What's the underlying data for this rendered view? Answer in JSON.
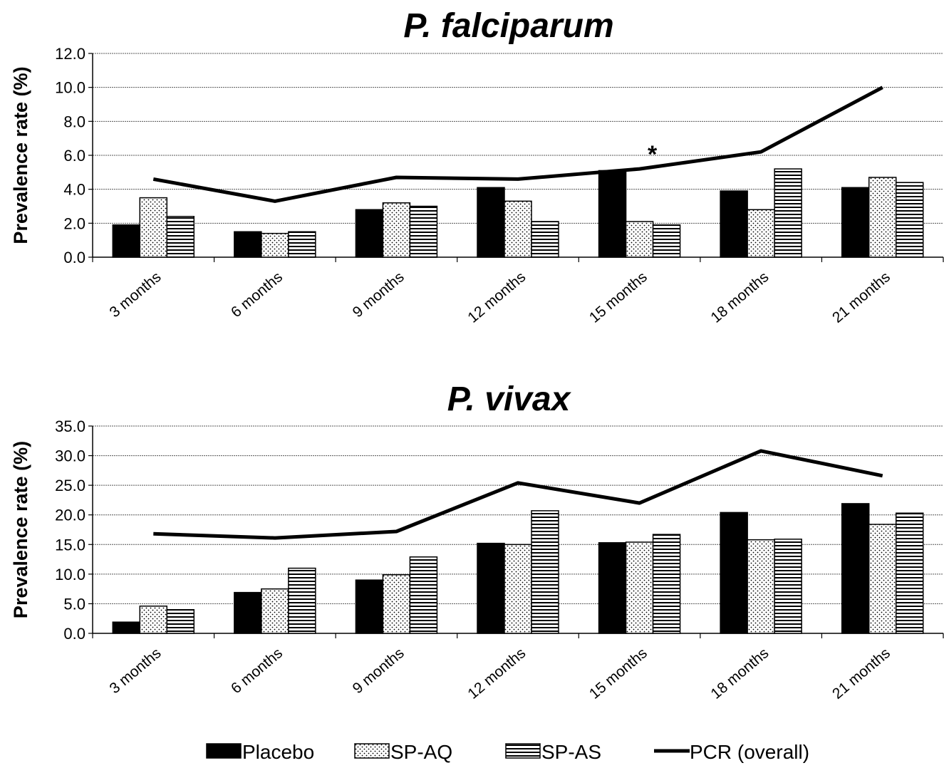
{
  "chart_data": [
    {
      "type": "bar",
      "title": "P. falciparum",
      "xlabel": "",
      "ylabel": "Prevalence rate (%)",
      "ylim": [
        0,
        12
      ],
      "yticks": [
        "0.0",
        "2.0",
        "4.0",
        "6.0",
        "8.0",
        "10.0",
        "12.0"
      ],
      "grid": true,
      "categories": [
        "3 months",
        "6 months",
        "9 months",
        "12 months",
        "15 months",
        "18 months",
        "21 months"
      ],
      "series": [
        {
          "name": "Placebo",
          "type": "bar",
          "pattern": "solid",
          "values": [
            1.9,
            1.5,
            2.8,
            4.1,
            5.1,
            3.9,
            4.1
          ]
        },
        {
          "name": "SP-AQ",
          "type": "bar",
          "pattern": "dots",
          "values": [
            3.5,
            1.4,
            3.2,
            3.3,
            2.1,
            2.8,
            4.7
          ]
        },
        {
          "name": "SP-AS",
          "type": "bar",
          "pattern": "hlines",
          "values": [
            2.4,
            1.5,
            3.0,
            2.1,
            1.9,
            5.2,
            4.4
          ]
        },
        {
          "name": "PCR (overall)",
          "type": "line",
          "values": [
            4.6,
            3.3,
            4.7,
            4.6,
            5.2,
            6.2,
            10.0
          ]
        }
      ],
      "annotations": [
        {
          "text": "*",
          "category": "15 months",
          "y": 6.0
        }
      ]
    },
    {
      "type": "bar",
      "title": "P. vivax",
      "xlabel": "",
      "ylabel": "Prevalence rate (%)",
      "ylim": [
        0,
        35
      ],
      "yticks": [
        "0.0",
        "5.0",
        "10.0",
        "15.0",
        "20.0",
        "25.0",
        "30.0",
        "35.0"
      ],
      "grid": true,
      "categories": [
        "3 months",
        "6 months",
        "9 months",
        "12 months",
        "15 months",
        "18 months",
        "21 months"
      ],
      "series": [
        {
          "name": "Placebo",
          "type": "bar",
          "pattern": "solid",
          "values": [
            1.9,
            6.9,
            9.0,
            15.2,
            15.3,
            20.4,
            21.9
          ]
        },
        {
          "name": "SP-AQ",
          "type": "bar",
          "pattern": "dots",
          "values": [
            4.6,
            7.5,
            9.9,
            15.0,
            15.4,
            15.8,
            18.4
          ]
        },
        {
          "name": "SP-AS",
          "type": "bar",
          "pattern": "hlines",
          "values": [
            4.0,
            11.0,
            12.9,
            20.7,
            16.7,
            15.9,
            20.3
          ]
        },
        {
          "name": "PCR (overall)",
          "type": "line",
          "values": [
            16.8,
            16.1,
            17.2,
            25.4,
            22.0,
            30.8,
            26.6
          ]
        }
      ]
    }
  ],
  "legend": {
    "position": "bottom",
    "items": [
      {
        "label": "Placebo",
        "pattern": "solid"
      },
      {
        "label": "SP-AQ",
        "pattern": "dots"
      },
      {
        "label": "SP-AS",
        "pattern": "hlines"
      },
      {
        "label": "PCR (overall)",
        "pattern": "line"
      }
    ]
  },
  "colors": {
    "bar_fill": "#000000",
    "bar_stroke": "#000000",
    "pattern_bg": "#ffffff",
    "grid": "#555555",
    "line": "#000000"
  }
}
